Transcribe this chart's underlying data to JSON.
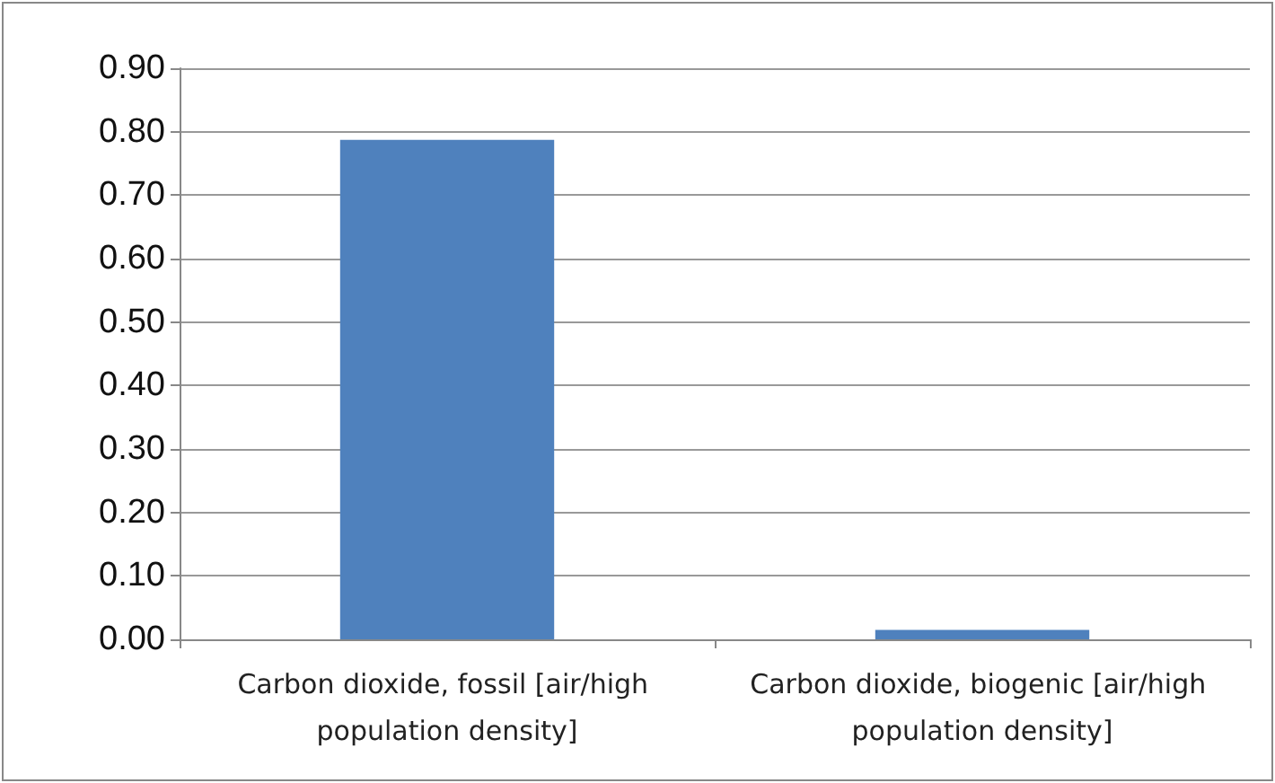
{
  "chart_data": {
    "type": "bar",
    "categories": [
      "Carbon dioxide, fossil [air/high population density]",
      "Carbon dioxide, biogenic [air/high population density]"
    ],
    "values": [
      0.787,
      0.015
    ],
    "color": "#4f81bd",
    "ylim": [
      0,
      0.9
    ],
    "yticks": [
      {
        "value": 0,
        "label": "0.00"
      },
      {
        "value": 0.1,
        "label": "0.10"
      },
      {
        "value": 0.2,
        "label": "0.20"
      },
      {
        "value": 0.3,
        "label": "0.30"
      },
      {
        "value": 0.4,
        "label": "0.40"
      },
      {
        "value": 0.5,
        "label": "0.50"
      },
      {
        "value": 0.6,
        "label": "0.60"
      },
      {
        "value": 0.7,
        "label": "0.70"
      },
      {
        "value": 0.8,
        "label": "0.80"
      },
      {
        "value": 0.9,
        "label": "0.90"
      }
    ],
    "grid": "y"
  }
}
